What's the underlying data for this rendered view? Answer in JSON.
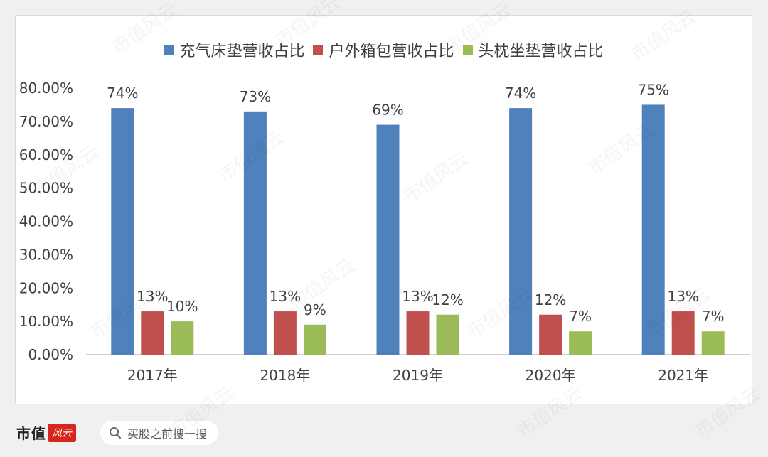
{
  "chart_data": {
    "type": "bar",
    "categories": [
      "2017年",
      "2018年",
      "2019年",
      "2020年",
      "2021年"
    ],
    "series": [
      {
        "name": "充气床垫营收占比",
        "color": "#4f81bd",
        "values": [
          74,
          73,
          69,
          74,
          75
        ],
        "labels": [
          "74%",
          "73%",
          "69%",
          "74%",
          "75%"
        ]
      },
      {
        "name": "户外箱包营收占比",
        "color": "#c0504d",
        "values": [
          13,
          13,
          13,
          12,
          13
        ],
        "labels": [
          "13%",
          "13%",
          "13%",
          "12%",
          "13%"
        ]
      },
      {
        "name": "头枕坐垫营收占比",
        "color": "#9bbb59",
        "values": [
          10,
          9,
          12,
          7,
          7
        ],
        "labels": [
          "10%",
          "9%",
          "12%",
          "7%",
          "7%"
        ]
      }
    ],
    "yticks": [
      "0.00%",
      "10.00%",
      "20.00%",
      "30.00%",
      "40.00%",
      "50.00%",
      "60.00%",
      "70.00%",
      "80.00%"
    ],
    "ylim": [
      0,
      80
    ],
    "legend_position": "top",
    "grid": false
  },
  "footer": {
    "brand": "市值",
    "brand_seal": "风云",
    "search_text": "买股之前搜一搜",
    "search_icon": "search-icon"
  },
  "watermark_text": "市值风云"
}
